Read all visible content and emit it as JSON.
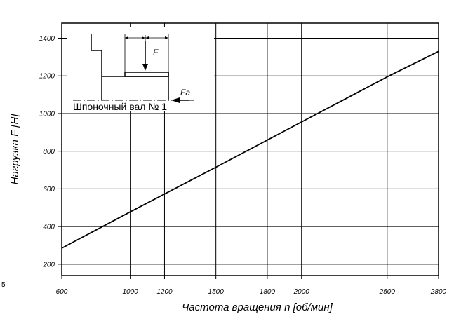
{
  "chart_data": {
    "type": "line",
    "xlabel": "Частота вращения n [об/мин]",
    "ylabel": "Нагрузка F [Н]",
    "xlim": [
      600,
      2800
    ],
    "ylim": [
      140,
      1480
    ],
    "x_ticks": [
      600,
      1000,
      1200,
      1500,
      1800,
      2000,
      2500,
      2800
    ],
    "y_ticks": [
      200,
      400,
      600,
      800,
      1000,
      1200,
      1400
    ],
    "grid": true,
    "series": [
      {
        "x": [
          600,
          1000,
          1500,
          2000,
          2500,
          2800
        ],
        "y": [
          285,
          478,
          715,
          955,
          1195,
          1330
        ]
      }
    ],
    "inset": {
      "caption": "Шпоночный вал № 1",
      "force_radial": "F",
      "force_axial": "Fa"
    }
  },
  "margin_mark": "5"
}
